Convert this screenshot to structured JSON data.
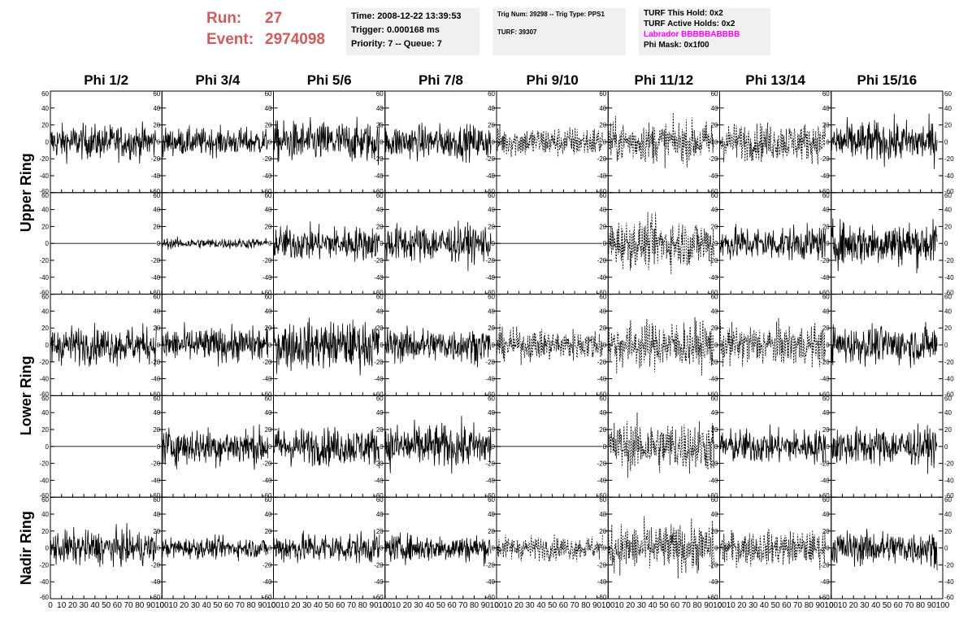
{
  "run_info": {
    "run_label": "Run:",
    "run_value": "27",
    "event_label": "Event:",
    "event_value": "2974098"
  },
  "trigger_box": {
    "time": "Time: 2008-12-22 13:39:53",
    "trigger": "Trigger: 0.000168 ms",
    "priority": "Priority: 7 -- Queue: 7"
  },
  "trig_box": {
    "trig_line": "Trig Num: 39298 -- Trig Type: PPS1",
    "turf": "TURF: 39307"
  },
  "turf_box": {
    "this_hold": "TURF This Hold: 0x2",
    "active_holds": "TURF Active Holds: 0x2",
    "labrador": "Labrador BBBBBABBBB",
    "phi_mask": "Phi Mask: 0x1f00"
  },
  "colors": {
    "run_text": "#cd5c5c",
    "labrador_text": "#ff00ff",
    "box_bg": "#f0f0f0"
  },
  "chart_data": {
    "type": "line",
    "columns": [
      "Phi 1/2",
      "Phi 3/4",
      "Phi 5/6",
      "Phi 7/8",
      "Phi 9/10",
      "Phi 11/12",
      "Phi 13/14",
      "Phi 15/16"
    ],
    "ring_labels": [
      {
        "label": "Upper Ring",
        "rows": [
          0,
          1
        ]
      },
      {
        "label": "Lower Ring",
        "rows": [
          2,
          3
        ]
      },
      {
        "label": "Nadir Ring",
        "rows": [
          4
        ]
      }
    ],
    "xlim": [
      0,
      100
    ],
    "ylim": [
      -60,
      60
    ],
    "x_ticks": [
      "0",
      "10",
      "20",
      "30",
      "40",
      "50",
      "60",
      "70",
      "80",
      "90",
      "100"
    ],
    "y_ticks": [
      "60",
      "40",
      "20",
      "0",
      "-20",
      "-40",
      "-60"
    ],
    "x_ticks_values": [
      0,
      10,
      20,
      30,
      40,
      50,
      60,
      70,
      80,
      90,
      100
    ],
    "y_ticks_values": [
      60,
      40,
      20,
      0,
      -20,
      -40,
      -60
    ],
    "samples_per_trace": 260,
    "trace_x_max": 95,
    "traces": [
      [
        {
          "amp": 10,
          "style": "solid"
        },
        {
          "amp": 8,
          "style": "solid"
        },
        {
          "amp": 12,
          "style": "solid"
        },
        {
          "amp": 10,
          "style": "solid"
        },
        {
          "amp": 9,
          "style": "dashed"
        },
        {
          "amp": 12,
          "style": "dashed"
        },
        {
          "amp": 11,
          "style": "dashed"
        },
        {
          "amp": 12,
          "style": "solid"
        }
      ],
      [
        {
          "amp": 0,
          "style": "solid"
        },
        {
          "amp": 3,
          "style": "solid"
        },
        {
          "amp": 10,
          "style": "solid"
        },
        {
          "amp": 11,
          "style": "solid"
        },
        {
          "amp": 0,
          "style": "solid"
        },
        {
          "amp": 14,
          "style": "dashed"
        },
        {
          "amp": 10,
          "style": "solid"
        },
        {
          "amp": 13,
          "style": "solid"
        }
      ],
      [
        {
          "amp": 11,
          "style": "solid"
        },
        {
          "amp": 10,
          "style": "solid"
        },
        {
          "amp": 14,
          "style": "solid"
        },
        {
          "amp": 10,
          "style": "solid"
        },
        {
          "amp": 9,
          "style": "dashed"
        },
        {
          "amp": 14,
          "style": "dashed"
        },
        {
          "amp": 12,
          "style": "dashed"
        },
        {
          "amp": 11,
          "style": "solid"
        }
      ],
      [
        {
          "amp": 0,
          "style": "solid"
        },
        {
          "amp": 11,
          "style": "solid"
        },
        {
          "amp": 11,
          "style": "solid"
        },
        {
          "amp": 13,
          "style": "solid"
        },
        {
          "amp": 0,
          "style": "solid"
        },
        {
          "amp": 15,
          "style": "dashed"
        },
        {
          "amp": 10,
          "style": "solid"
        },
        {
          "amp": 11,
          "style": "solid"
        }
      ],
      [
        {
          "amp": 10,
          "style": "solid"
        },
        {
          "amp": 6,
          "style": "solid"
        },
        {
          "amp": 9,
          "style": "solid"
        },
        {
          "amp": 8,
          "style": "solid"
        },
        {
          "amp": 7,
          "style": "dashed"
        },
        {
          "amp": 14,
          "style": "dashed"
        },
        {
          "amp": 10,
          "style": "dashed"
        },
        {
          "amp": 10,
          "style": "solid"
        }
      ]
    ]
  }
}
